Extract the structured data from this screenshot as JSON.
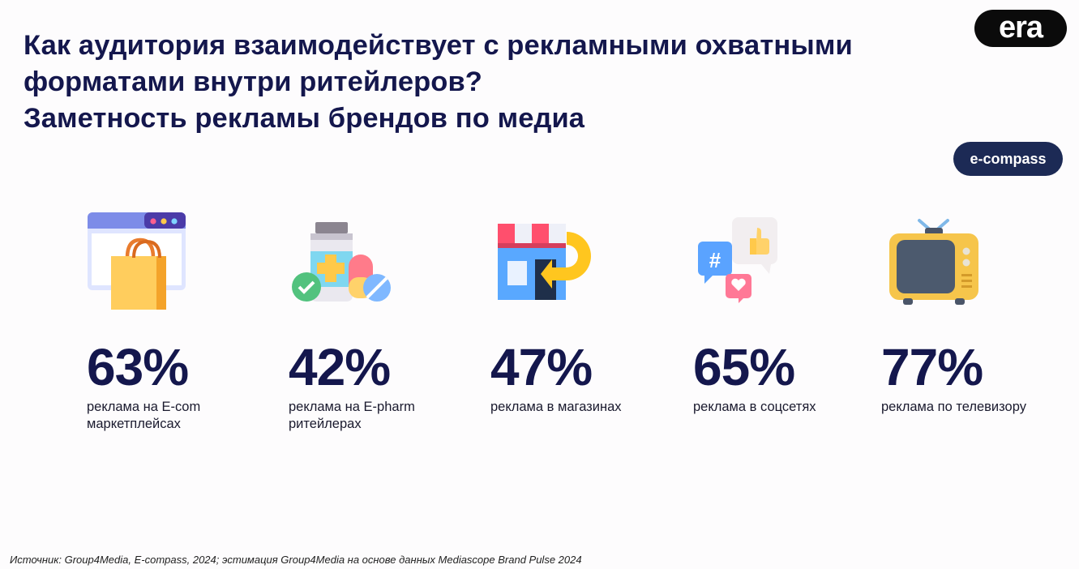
{
  "title": {
    "line1": "Как аудитория взаимодействует с рекламными охватными",
    "line2": "форматами внутри ритейлеров?",
    "line3": "Заметность рекламы брендов по медиа"
  },
  "logos": {
    "era": "era",
    "ecompass": "e-compass"
  },
  "stats": [
    {
      "value": "63%",
      "label": "реклама на E-com маркетплейсах",
      "icon": "shopping-bag-browser-icon"
    },
    {
      "value": "42%",
      "label": "реклама на E-pharm ритейлерах",
      "icon": "medicine-pills-icon"
    },
    {
      "value": "47%",
      "label": "реклама в магазинах",
      "icon": "store-icon"
    },
    {
      "value": "65%",
      "label": "реклама в соцсетях",
      "icon": "social-media-icon"
    },
    {
      "value": "77%",
      "label": "реклама по телевизору",
      "icon": "tv-icon"
    }
  ],
  "colors": {
    "heading": "#14174d",
    "era_bg": "#0b0b0b",
    "ecompass_bg": "#1c2a55"
  },
  "source": "Источник: Group4Media, E-compass, 2024; эстимация Group4Media на основе данных Mediascope Brand Pulse 2024"
}
